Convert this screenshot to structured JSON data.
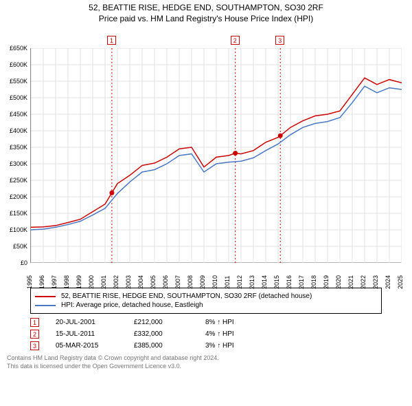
{
  "title_line1": "52, BEATTIE RISE, HEDGE END, SOUTHAMPTON, SO30 2RF",
  "title_line2": "Price paid vs. HM Land Registry's House Price Index (HPI)",
  "chart": {
    "type": "line",
    "background_color": "#ffffff",
    "grid_color": "#e0e0e0",
    "axis_color": "#888888",
    "ylim": [
      0,
      650000
    ],
    "ytick_step": 50000,
    "yticks": [
      "£0",
      "£50K",
      "£100K",
      "£150K",
      "£200K",
      "£250K",
      "£300K",
      "£350K",
      "£400K",
      "£450K",
      "£500K",
      "£550K",
      "£600K",
      "£650K"
    ],
    "xlim": [
      1995,
      2025
    ],
    "xticks": [
      1995,
      1996,
      1997,
      1998,
      1999,
      2000,
      2001,
      2002,
      2003,
      2004,
      2005,
      2006,
      2007,
      2008,
      2009,
      2010,
      2011,
      2012,
      2013,
      2014,
      2015,
      2016,
      2017,
      2018,
      2019,
      2020,
      2021,
      2022,
      2023,
      2024,
      2025
    ],
    "series": [
      {
        "name": "property",
        "label": "52, BEATTIE RISE, HEDGE END, SOUTHAMPTON, SO30 2RF (detached house)",
        "color": "#cc0000",
        "line_width": 1.5,
        "x": [
          1995,
          1996,
          1997,
          1998,
          1999,
          2000,
          2001,
          2001.55,
          2002,
          2003,
          2004,
          2005,
          2006,
          2007,
          2008,
          2009,
          2010,
          2011,
          2011.54,
          2012,
          2013,
          2014,
          2015,
          2015.18,
          2016,
          2017,
          2018,
          2019,
          2020,
          2021,
          2022,
          2023,
          2024,
          2025
        ],
        "y": [
          108000,
          109000,
          113000,
          122000,
          132000,
          155000,
          178000,
          212000,
          240000,
          265000,
          295000,
          302000,
          320000,
          345000,
          350000,
          290000,
          320000,
          325000,
          332000,
          330000,
          340000,
          365000,
          380000,
          385000,
          410000,
          430000,
          445000,
          450000,
          460000,
          510000,
          560000,
          540000,
          555000,
          545000
        ]
      },
      {
        "name": "hpi",
        "label": "HPI: Average price, detached house, Eastleigh",
        "color": "#4a78c4",
        "line_width": 1.5,
        "x": [
          1995,
          1996,
          1997,
          1998,
          1999,
          2000,
          2001,
          2002,
          2003,
          2004,
          2005,
          2006,
          2007,
          2008,
          2009,
          2010,
          2011,
          2012,
          2013,
          2014,
          2015,
          2016,
          2017,
          2018,
          2019,
          2020,
          2021,
          2022,
          2023,
          2024,
          2025
        ],
        "y": [
          100000,
          102000,
          108000,
          116000,
          126000,
          145000,
          165000,
          210000,
          245000,
          275000,
          282000,
          300000,
          325000,
          330000,
          275000,
          300000,
          305000,
          308000,
          318000,
          340000,
          360000,
          388000,
          410000,
          422000,
          428000,
          440000,
          485000,
          535000,
          515000,
          530000,
          525000
        ]
      }
    ],
    "markers": [
      {
        "n": "1",
        "x": 2001.55,
        "y": 212000,
        "vline_color": "#cc0000"
      },
      {
        "n": "2",
        "x": 2011.54,
        "y": 332000,
        "vline_color": "#cc0000"
      },
      {
        "n": "3",
        "x": 2015.18,
        "y": 385000,
        "vline_color": "#cc0000"
      }
    ],
    "tick_fontsize": 9,
    "title_fontsize": 12
  },
  "legend": {
    "border_color": "#000000",
    "items": [
      {
        "color": "#cc0000",
        "label": "52, BEATTIE RISE, HEDGE END, SOUTHAMPTON, SO30 2RF (detached house)"
      },
      {
        "color": "#4a78c4",
        "label": "HPI: Average price, detached house, Eastleigh"
      }
    ]
  },
  "events": [
    {
      "n": "1",
      "date": "20-JUL-2001",
      "price": "£212,000",
      "delta": "8% ↑ HPI"
    },
    {
      "n": "2",
      "date": "15-JUL-2011",
      "price": "£332,000",
      "delta": "4% ↑ HPI"
    },
    {
      "n": "3",
      "date": "05-MAR-2015",
      "price": "£385,000",
      "delta": "3% ↑ HPI"
    }
  ],
  "attribution": {
    "line1": "Contains HM Land Registry data © Crown copyright and database right 2024.",
    "line2": "This data is licensed under the Open Government Licence v3.0."
  }
}
